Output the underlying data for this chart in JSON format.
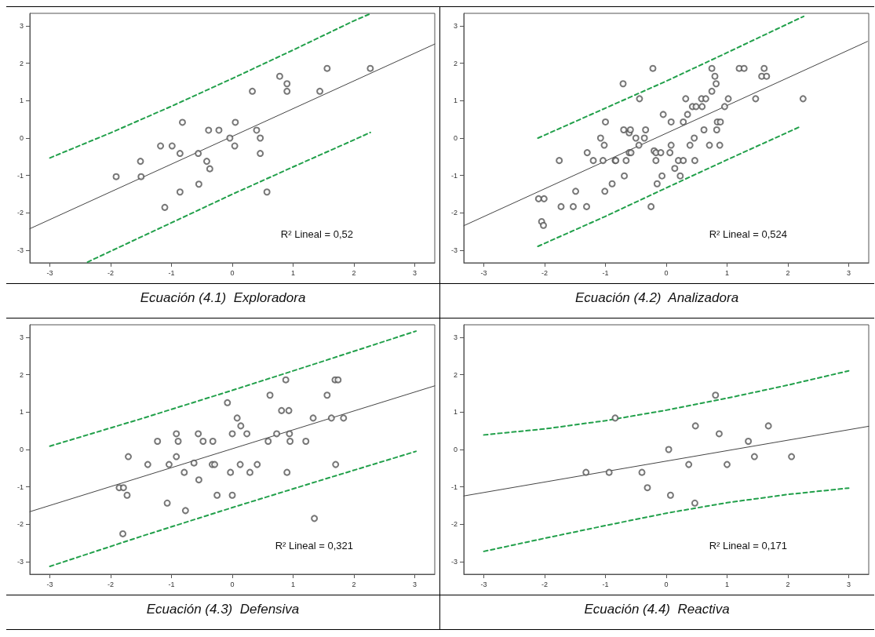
{
  "chart_data": [
    {
      "type": "scatter",
      "title": "Ecuación (4.1)  Exploradora",
      "annotations": [
        "R² Lineal = 0,52"
      ],
      "xlim": [
        -3.33,
        3.33
      ],
      "ylim": [
        -3.33,
        3.33
      ],
      "xticks": [
        -3,
        -2,
        -1,
        0,
        1,
        2,
        3
      ],
      "yticks": [
        -3,
        -2,
        -1,
        0,
        1,
        2,
        3
      ],
      "grid": false,
      "marker": "circle",
      "series": [
        {
          "color": "#555555",
          "x": [
            -1.91,
            -1.51,
            -1.5,
            -1.18,
            -1.11,
            -0.99,
            -0.86,
            -0.86,
            -0.82,
            -0.56,
            -0.55,
            -0.42,
            -0.39,
            -0.37,
            -0.22,
            -0.04,
            0.04,
            0.05,
            0.33,
            0.4,
            0.46,
            0.46,
            0.57,
            0.78,
            0.9,
            0.9,
            1.44,
            1.56,
            2.27
          ],
          "values": [
            -1.03,
            -0.62,
            -1.03,
            -0.21,
            -1.85,
            -0.21,
            -0.41,
            -1.44,
            0.42,
            -0.41,
            -1.23,
            -0.62,
            0.21,
            -0.82,
            0.21,
            0,
            -0.21,
            0.42,
            1.25,
            0.21,
            0,
            -0.41,
            -1.44,
            1.65,
            1.25,
            1.45,
            1.25,
            1.86,
            1.86
          ]
        },
        {
          "type": "line",
          "color": "#444444",
          "line_style": "solid",
          "marker": "none",
          "x": [
            -3.33,
            3.33
          ],
          "values": [
            -2.42,
            2.51
          ]
        },
        {
          "type": "line",
          "color": "#22a04b",
          "line_style": "dashed",
          "marker": "none",
          "x": [
            -3,
            -2,
            -1,
            0,
            1,
            2,
            2.27
          ],
          "values": [
            -0.53,
            0.14,
            0.85,
            1.59,
            2.35,
            3.13,
            3.32
          ]
        },
        {
          "type": "line",
          "color": "#22a04b",
          "line_style": "dashed",
          "marker": "none",
          "x": [
            -2.38,
            -2,
            -1,
            0,
            1,
            2,
            2.27
          ],
          "values": [
            -3.31,
            -3.02,
            -2.26,
            -1.5,
            -0.77,
            -0.05,
            0.15
          ]
        }
      ]
    },
    {
      "type": "scatter",
      "title": "Ecuación (4.2)  Analizadora",
      "annotations": [
        "R² Lineal = 0,524"
      ],
      "xlim": [
        -3.33,
        3.33
      ],
      "ylim": [
        -3.33,
        3.33
      ],
      "xticks": [
        -3,
        -2,
        -1,
        0,
        1,
        2,
        3
      ],
      "yticks": [
        -3,
        -2,
        -1,
        0,
        1,
        2,
        3
      ],
      "grid": false,
      "marker": "circle",
      "series": [
        {
          "color": "#555555",
          "x": [
            -2.1,
            -2.01,
            -2.05,
            -2.02,
            -1.76,
            -1.73,
            -1.53,
            -1.49,
            -1.31,
            -1.3,
            -1.2,
            -1.08,
            -1.04,
            -1.02,
            -1.01,
            -1,
            -0.89,
            -0.84,
            -0.83,
            -0.71,
            -0.7,
            -0.69,
            -0.66,
            -0.61,
            -0.61,
            -0.59,
            -0.58,
            -0.5,
            -0.45,
            -0.44,
            -0.36,
            -0.34,
            -0.25,
            -0.22,
            -0.2,
            -0.17,
            -0.17,
            -0.15,
            -0.09,
            -0.07,
            -0.05,
            0.06,
            0.08,
            0.08,
            0.14,
            0.2,
            0.23,
            0.28,
            0.28,
            0.32,
            0.35,
            0.39,
            0.43,
            0.46,
            0.47,
            0.49,
            0.58,
            0.59,
            0.62,
            0.65,
            0.71,
            0.75,
            0.75,
            0.8,
            0.82,
            0.83,
            0.84,
            0.88,
            0.89,
            0.96,
            1.02,
            1.2,
            1.28,
            1.47,
            1.57,
            1.61,
            1.65,
            2.25
          ],
          "values": [
            -1.62,
            -1.62,
            -2.23,
            -2.33,
            -0.6,
            -1.83,
            -1.83,
            -1.42,
            -1.83,
            -0.39,
            -0.6,
            0,
            -0.6,
            -0.19,
            -1.42,
            0.43,
            -1.22,
            -0.6,
            -0.6,
            1.45,
            0.22,
            -1.01,
            -0.6,
            -0.39,
            0.14,
            0.22,
            -0.39,
            0,
            -0.19,
            1.05,
            0,
            0.22,
            -1.83,
            1.86,
            -0.34,
            -0.6,
            -0.39,
            -1.22,
            -0.39,
            -1.01,
            0.63,
            -0.39,
            -0.19,
            0.43,
            -0.81,
            -0.6,
            -1.01,
            -0.6,
            0.43,
            1.05,
            0.63,
            -0.19,
            0.84,
            0,
            -0.6,
            0.84,
            1.05,
            0.84,
            0.22,
            1.05,
            -0.19,
            1.25,
            1.86,
            1.65,
            1.45,
            0.22,
            0.43,
            -0.19,
            0.43,
            0.84,
            1.05,
            1.86,
            1.86,
            1.05,
            1.65,
            1.86,
            1.65,
            1.05
          ]
        },
        {
          "type": "line",
          "color": "#444444",
          "line_style": "solid",
          "marker": "none",
          "x": [
            -3.33,
            3.31
          ],
          "values": [
            -2.34,
            2.58
          ]
        },
        {
          "type": "line",
          "color": "#22a04b",
          "line_style": "dashed",
          "marker": "none",
          "x": [
            -2.11,
            -1,
            0,
            1,
            2.26
          ],
          "values": [
            0,
            0.8,
            1.52,
            2.28,
            3.25
          ]
        },
        {
          "type": "line",
          "color": "#22a04b",
          "line_style": "dashed",
          "marker": "none",
          "x": [
            -2.11,
            -1,
            0,
            1,
            2.21
          ],
          "values": [
            -2.89,
            -2.09,
            -1.33,
            -0.58,
            0.31
          ]
        }
      ]
    },
    {
      "type": "scatter",
      "title": "Ecuación (4.3)  Defensiva",
      "annotations": [
        "R² Lineal = 0,321"
      ],
      "xlim": [
        -3.33,
        3.33
      ],
      "ylim": [
        -3.33,
        3.33
      ],
      "xticks": [
        -3,
        -2,
        -1,
        0,
        1,
        2,
        3
      ],
      "yticks": [
        -3,
        -2,
        -1,
        0,
        1,
        2,
        3
      ],
      "grid": false,
      "marker": "circle",
      "series": [
        {
          "color": "#555555",
          "x": [
            -1.86,
            -1.79,
            -1.73,
            -1.8,
            -1.71,
            -1.39,
            -1.23,
            -1.07,
            -1.04,
            -0.92,
            -0.92,
            -0.89,
            -0.79,
            -0.77,
            -0.63,
            -0.56,
            -0.55,
            -0.48,
            -0.33,
            -0.32,
            -0.29,
            -0.25,
            -0.08,
            -0.03,
            0,
            0,
            0.08,
            0.13,
            0.14,
            0.24,
            0.29,
            0.41,
            0.59,
            0.62,
            0.73,
            0.81,
            0.88,
            0.9,
            0.93,
            0.94,
            0.95,
            1.21,
            1.33,
            1.35,
            1.56,
            1.63,
            1.69,
            1.7,
            1.74,
            1.83
          ],
          "values": [
            -1.02,
            -1.02,
            -1.22,
            -2.25,
            -0.19,
            -0.4,
            0.22,
            -1.43,
            -0.4,
            0.42,
            -0.19,
            0.22,
            -0.61,
            -1.63,
            -0.36,
            0.42,
            -0.81,
            0.22,
            -0.4,
            0.22,
            -0.4,
            -1.22,
            1.25,
            -0.61,
            -1.22,
            0.42,
            0.84,
            -0.4,
            0.63,
            0.42,
            -0.61,
            -0.4,
            0.22,
            1.45,
            0.42,
            1.04,
            1.86,
            -0.61,
            1.04,
            0.42,
            0.22,
            0.22,
            0.84,
            -1.84,
            1.45,
            0.84,
            1.86,
            -0.4,
            1.86,
            0.84
          ]
        },
        {
          "type": "line",
          "color": "#444444",
          "line_style": "solid",
          "marker": "none",
          "x": [
            -3.33,
            3.33
          ],
          "values": [
            -1.66,
            1.7
          ]
        },
        {
          "type": "line",
          "color": "#22a04b",
          "line_style": "dashed",
          "marker": "none",
          "x": [
            -3,
            -1.5,
            0,
            1.5,
            3.02
          ],
          "values": [
            0.09,
            0.82,
            1.58,
            2.36,
            3.16
          ]
        },
        {
          "type": "line",
          "color": "#22a04b",
          "line_style": "dashed",
          "marker": "none",
          "x": [
            -3,
            -1.5,
            0,
            1.5,
            3.02
          ],
          "values": [
            -3.12,
            -2.32,
            -1.55,
            -0.8,
            -0.05
          ]
        }
      ]
    },
    {
      "type": "scatter",
      "title": "Ecuación (4.4)  Reactiva",
      "annotations": [
        "R² Lineal = 0,171"
      ],
      "xlim": [
        -3.33,
        3.33
      ],
      "ylim": [
        -3.33,
        3.33
      ],
      "xticks": [
        -3,
        -2,
        -1,
        0,
        1,
        2,
        3
      ],
      "yticks": [
        -3,
        -2,
        -1,
        0,
        1,
        2,
        3
      ],
      "grid": false,
      "marker": "circle",
      "series": [
        {
          "color": "#555555",
          "x": [
            -1.32,
            -0.94,
            -0.84,
            -0.4,
            -0.31,
            0.04,
            0.07,
            0.37,
            0.47,
            0.48,
            0.81,
            0.87,
            1,
            1.35,
            1.45,
            1.68,
            2.06
          ],
          "values": [
            -0.61,
            -0.61,
            0.84,
            -0.61,
            -1.02,
            0,
            -1.22,
            -0.4,
            -1.43,
            0.63,
            1.45,
            0.42,
            -0.4,
            0.22,
            -0.19,
            0.63,
            -0.19
          ]
        },
        {
          "type": "line",
          "color": "#444444",
          "line_style": "solid",
          "marker": "none",
          "x": [
            -3.33,
            3.33
          ],
          "values": [
            -1.24,
            0.62
          ]
        },
        {
          "type": "line",
          "color": "#22a04b",
          "line_style": "dashed",
          "marker": "none",
          "x": [
            -3,
            -2,
            -1,
            0,
            1,
            2,
            3
          ],
          "values": [
            0.39,
            0.55,
            0.77,
            1.05,
            1.37,
            1.72,
            2.1
          ]
        },
        {
          "type": "line",
          "color": "#22a04b",
          "line_style": "dashed",
          "marker": "none",
          "x": [
            -3,
            -2,
            -1,
            0,
            1,
            2,
            3
          ],
          "values": [
            -2.72,
            -2.37,
            -2.03,
            -1.7,
            -1.42,
            -1.2,
            -1.03
          ]
        }
      ]
    }
  ]
}
